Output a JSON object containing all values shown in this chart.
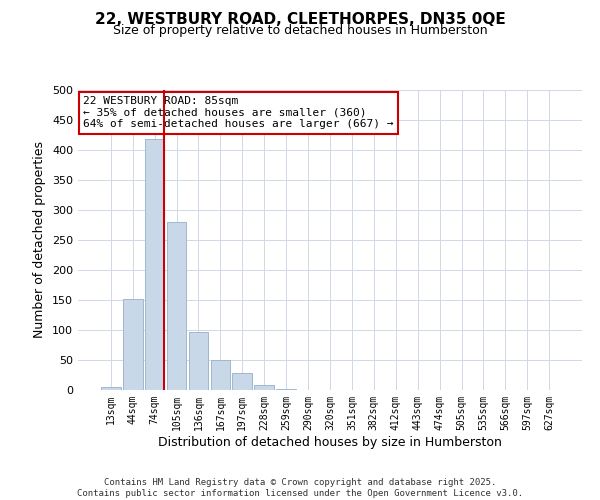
{
  "title": "22, WESTBURY ROAD, CLEETHORPES, DN35 0QE",
  "subtitle": "Size of property relative to detached houses in Humberston",
  "xlabel": "Distribution of detached houses by size in Humberston",
  "ylabel": "Number of detached properties",
  "bar_color": "#c8d8e8",
  "bar_edgecolor": "#a0b8cc",
  "bin_labels": [
    "13sqm",
    "44sqm",
    "74sqm",
    "105sqm",
    "136sqm",
    "167sqm",
    "197sqm",
    "228sqm",
    "259sqm",
    "290sqm",
    "320sqm",
    "351sqm",
    "382sqm",
    "412sqm",
    "443sqm",
    "474sqm",
    "505sqm",
    "535sqm",
    "566sqm",
    "597sqm",
    "627sqm"
  ],
  "bar_heights": [
    5,
    152,
    418,
    280,
    96,
    50,
    28,
    9,
    2,
    0,
    0,
    0,
    0,
    0,
    0,
    0,
    0,
    0,
    0,
    0,
    0
  ],
  "ylim": [
    0,
    500
  ],
  "yticks": [
    0,
    50,
    100,
    150,
    200,
    250,
    300,
    350,
    400,
    450,
    500
  ],
  "vline_color": "#cc0000",
  "vline_x_index": 2,
  "annotation_text": "22 WESTBURY ROAD: 85sqm\n← 35% of detached houses are smaller (360)\n64% of semi-detached houses are larger (667) →",
  "annotation_box_color": "#ffffff",
  "annotation_box_edgecolor": "#cc0000",
  "footer_line1": "Contains HM Land Registry data © Crown copyright and database right 2025.",
  "footer_line2": "Contains public sector information licensed under the Open Government Licence v3.0.",
  "background_color": "#ffffff",
  "grid_color": "#d0d8e8",
  "title_fontsize": 11,
  "subtitle_fontsize": 9
}
